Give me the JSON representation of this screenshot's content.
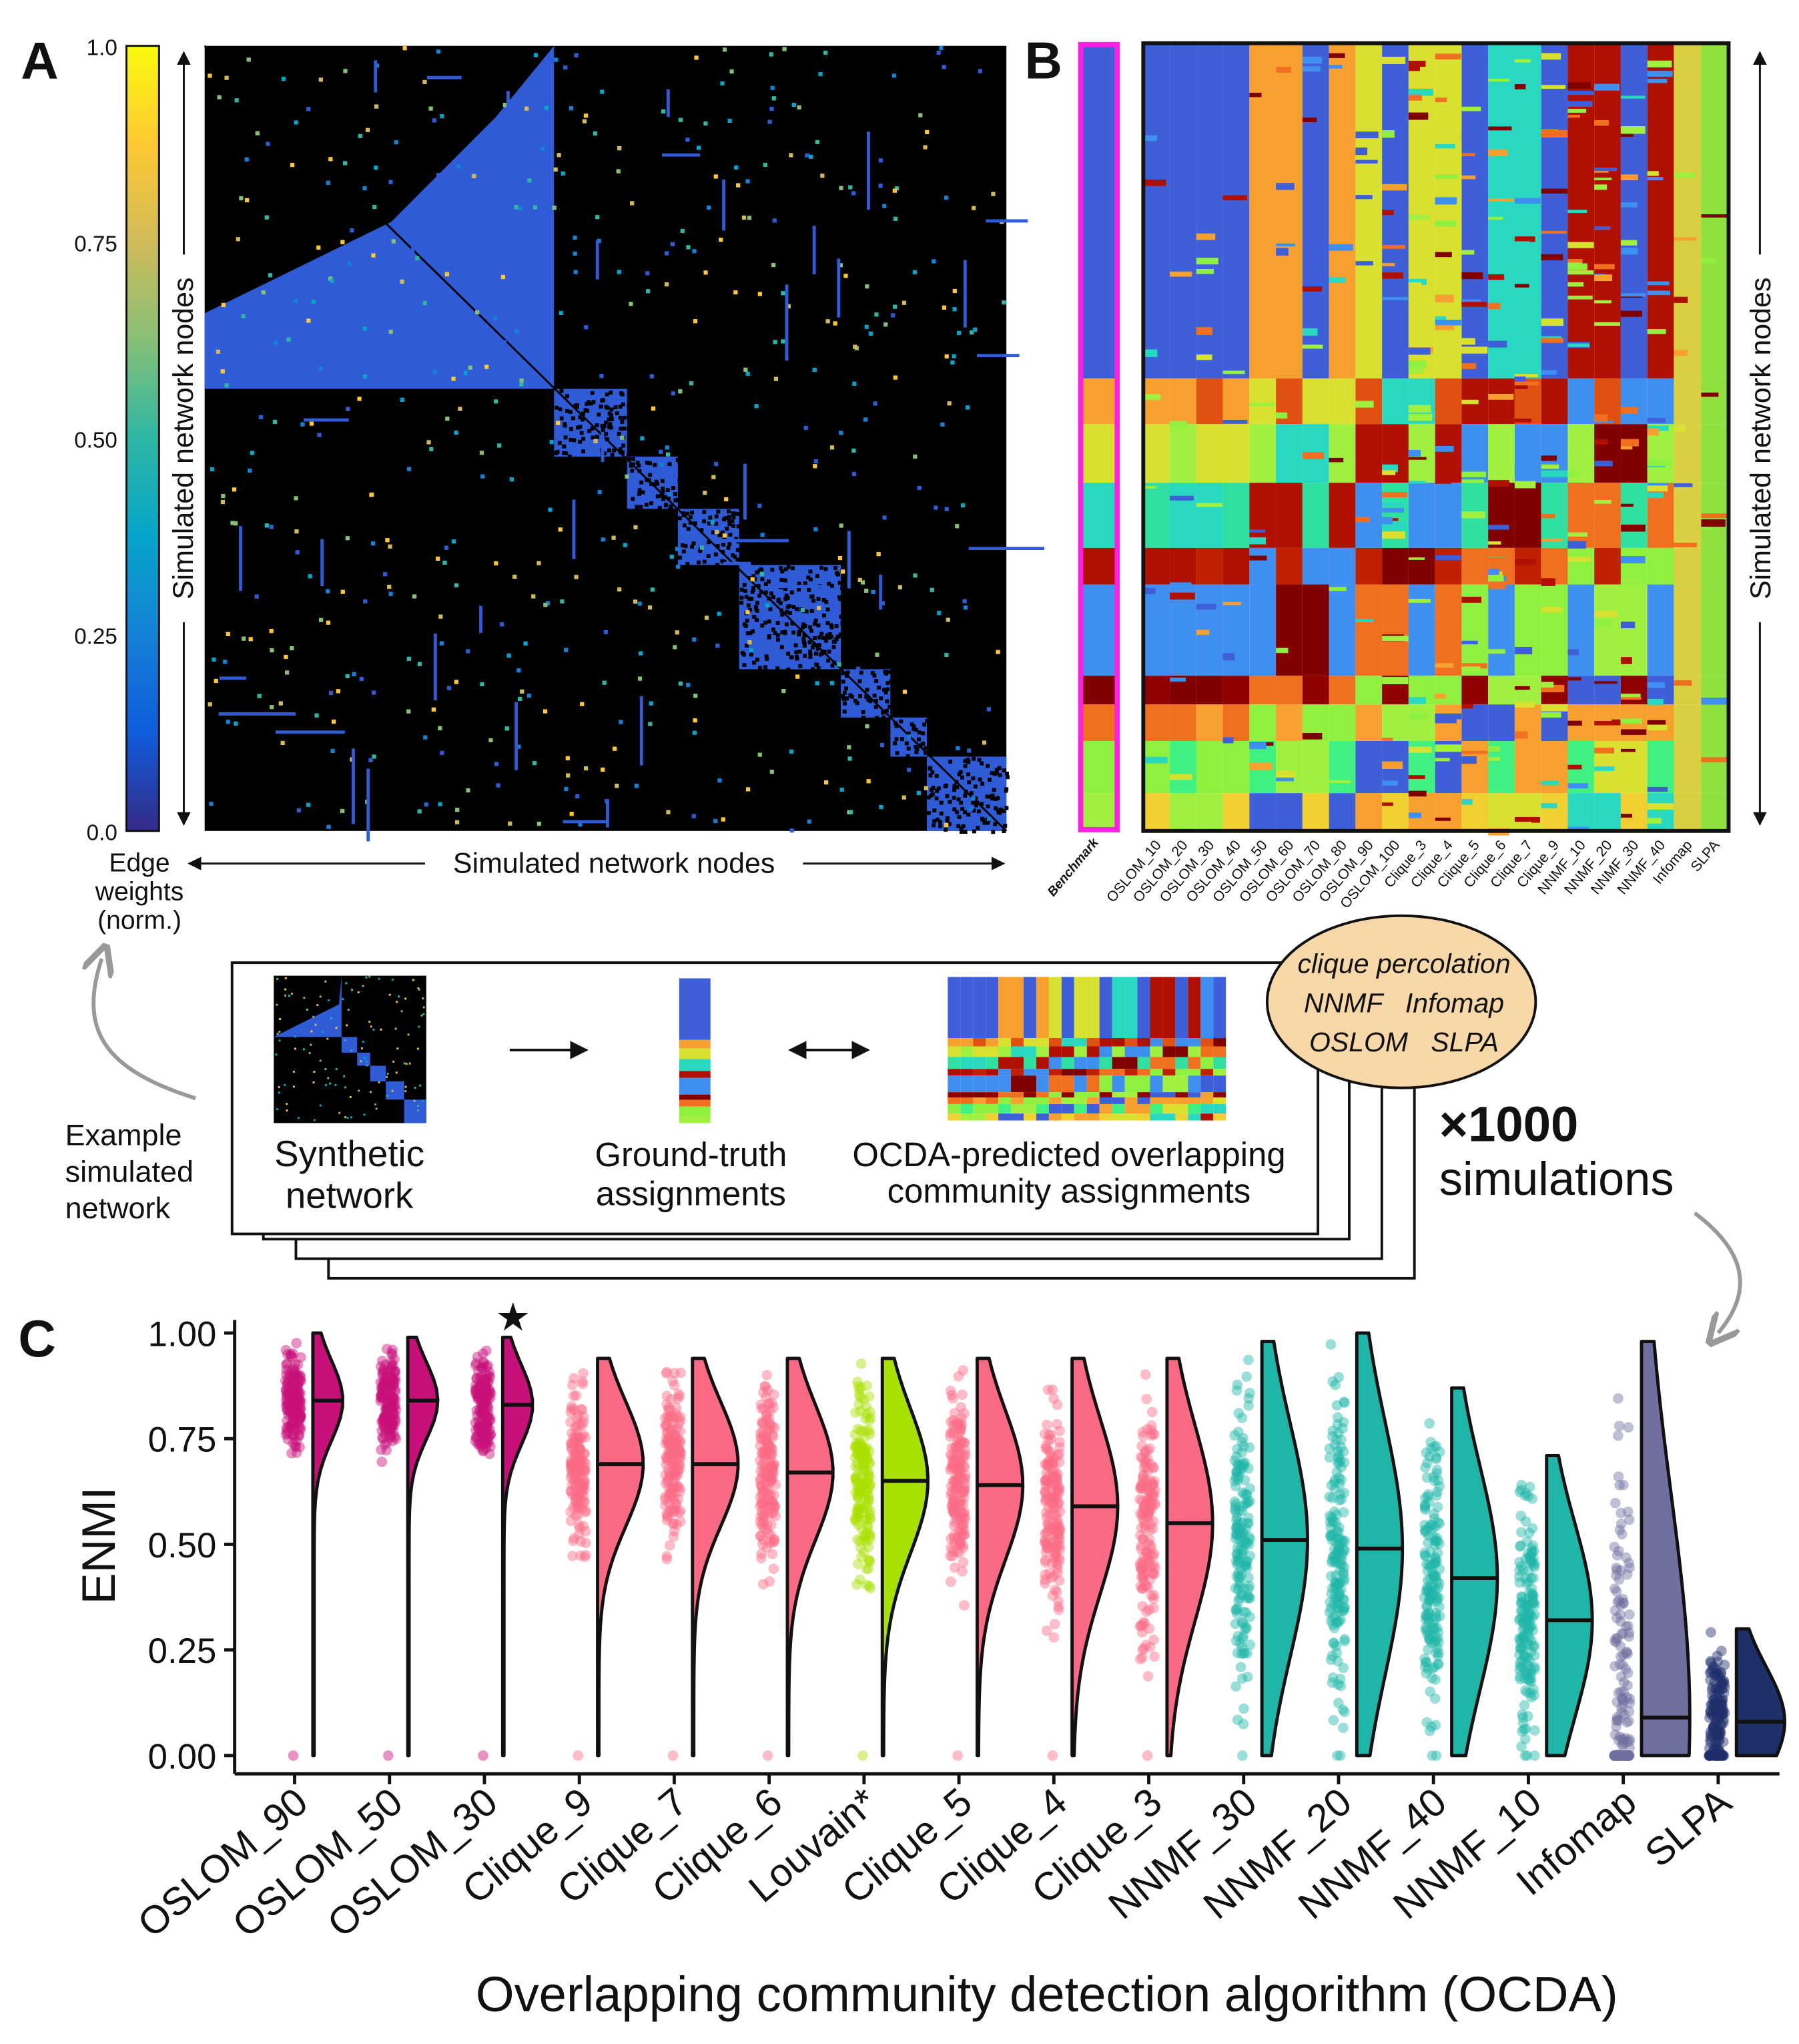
{
  "panels": {
    "a": "A",
    "b": "B",
    "c": "C"
  },
  "panel_a": {
    "colorbar_ticks": [
      "1.0",
      "0.75",
      "0.50",
      "0.25",
      "0.0"
    ],
    "colorbar_label": [
      "Edge",
      "weights",
      "(norm.)"
    ],
    "y_axis_label": "Simulated network nodes",
    "x_axis_label": "Simulated network nodes",
    "colormap": [
      "#352a87",
      "#0f5cdd",
      "#1481d6",
      "#06a4ca",
      "#2eb7a4",
      "#87bf77",
      "#d1bb59",
      "#fec832",
      "#f9fb0e"
    ]
  },
  "panel_b": {
    "benchmark_label": "Benchmark",
    "benchmark_border_color": "#ff1fe0",
    "columns": [
      "OSLOM_10",
      "OSLOM_20",
      "OSLOM_30",
      "OSLOM_40",
      "OSLOM_50",
      "OSLOM_60",
      "OSLOM_70",
      "OSLOM_80",
      "OSLOM_90",
      "OSLOM_100",
      "Clique_3",
      "Clique_4",
      "Clique_5",
      "Clique_6",
      "Clique_7",
      "Clique_9",
      "NNMF_10",
      "NNMF_20",
      "NNMF_30",
      "NNMF_40",
      "Infomap",
      "SLPA"
    ],
    "y_axis_label": "Simulated network nodes"
  },
  "workflow": {
    "example_label": [
      "Example",
      "simulated",
      "network"
    ],
    "synthetic": [
      "Synthetic",
      "network"
    ],
    "ground_truth": [
      "Ground-truth",
      "assignments"
    ],
    "predicted": [
      "OCDA-predicted overlapping",
      "community assignments"
    ],
    "ocda_list": [
      "clique percolation",
      "NNMF   Infomap",
      "OSLOM   SLPA"
    ],
    "multiplier": "×1000",
    "simulations": "simulations",
    "ellipse_color": "#f8d8a8"
  },
  "chart_data": {
    "type": "raincloud",
    "ylabel": "ENMI",
    "xlabel": "Overlapping community detection algorithm (OCDA)",
    "ylim": [
      0,
      1.0
    ],
    "yticks": [
      "0.00",
      "0.25",
      "0.50",
      "0.75",
      "1.00"
    ],
    "best_marker": "★",
    "best_category": "OSLOM_30",
    "categories": [
      "OSLOM_90",
      "OSLOM_50",
      "OSLOM_30",
      "Clique_9",
      "Clique_7",
      "Clique_6",
      "Louvain*",
      "Clique_5",
      "Clique_4",
      "Clique_3",
      "NNMF_30",
      "NNMF_20",
      "NNMF_40",
      "NNMF_10",
      "Infomap",
      "SLPA"
    ],
    "median": [
      0.84,
      0.84,
      0.83,
      0.69,
      0.69,
      0.67,
      0.65,
      0.64,
      0.59,
      0.55,
      0.51,
      0.49,
      0.42,
      0.32,
      0.09,
      0.08
    ],
    "max": [
      1.0,
      0.99,
      0.99,
      0.94,
      0.94,
      0.94,
      0.94,
      0.94,
      0.94,
      0.94,
      0.98,
      1.0,
      0.87,
      0.71,
      0.98,
      0.3
    ],
    "min": [
      0,
      0,
      0,
      0,
      0,
      0,
      0,
      0,
      0,
      0,
      0,
      0,
      0,
      0,
      0,
      0
    ],
    "colors": [
      "#c8107a",
      "#c8107a",
      "#c8107a",
      "#fb6a85",
      "#fb6a85",
      "#fb6a85",
      "#a8e000",
      "#fb6a85",
      "#fb6a85",
      "#fb6a85",
      "#1fb5a8",
      "#1fb5a8",
      "#1fb5a8",
      "#1fb5a8",
      "#6f6fa0",
      "#1f2f6a"
    ]
  }
}
